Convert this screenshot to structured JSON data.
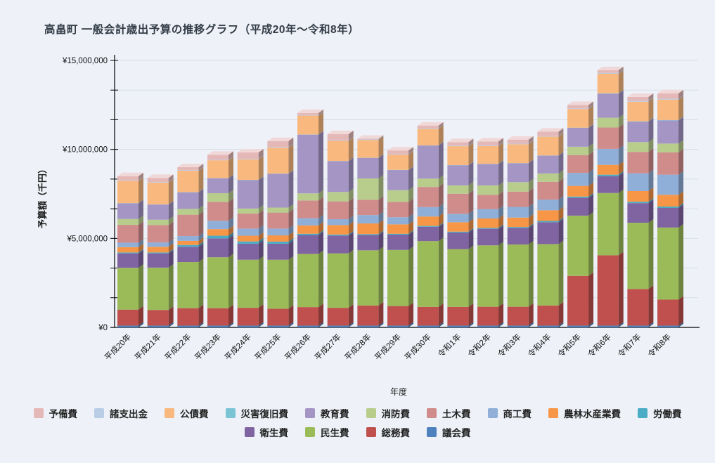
{
  "page": {
    "background": "#eef2f8"
  },
  "title": "高畠町 一般会計歳出予算の推移グラフ（平成20年～令和8年）",
  "y_axis": {
    "title": "予算額（千円）",
    "tick_labels": [
      "¥0",
      "¥5,000,000",
      "¥10,000,000",
      "¥15,000,000"
    ],
    "major_step": 5000000,
    "minor_divisions": 3
  },
  "x_axis": {
    "title": "年度"
  },
  "legend": {
    "rows": [
      [
        "予備費",
        "諸支出金",
        "公債費",
        "災害復旧費",
        "教育費",
        "消防費",
        "土木費",
        "商工費",
        "農林水産業費",
        "労働費"
      ],
      [
        "衛生費",
        "民生費",
        "総務費",
        "議会費"
      ]
    ]
  },
  "chart_data": {
    "type": "bar",
    "stacked": true,
    "effect": "3d",
    "unit": "千円",
    "title": "高畠町 一般会計歳出予算の推移グラフ（平成20年～令和8年）",
    "xlabel": "年度",
    "ylabel": "予算額（千円）",
    "ylim": [
      0,
      15000000
    ],
    "grid": true,
    "legend_position": "bottom",
    "categories": [
      "平成20年",
      "平成21年",
      "平成22年",
      "平成23年",
      "平成24年",
      "平成25年",
      "平成26年",
      "平成27年",
      "平成28年",
      "平成29年",
      "平成30年",
      "令和1年",
      "令和2年",
      "令和3年",
      "令和4年",
      "令和5年",
      "令和6年",
      "令和7年",
      "令和8年"
    ],
    "series": [
      {
        "name": "議会費",
        "color": "#4F81BD",
        "values": [
          100000,
          100000,
          100000,
          100000,
          100000,
          100000,
          100000,
          100000,
          100000,
          100000,
          100000,
          100000,
          100000,
          100000,
          100000,
          100000,
          100000,
          100000,
          100000
        ]
      },
      {
        "name": "総務費",
        "color": "#C0504D",
        "values": [
          900000,
          880000,
          980000,
          980000,
          1000000,
          950000,
          1040000,
          1000000,
          1130000,
          1100000,
          1050000,
          1050000,
          1060000,
          1060000,
          1130000,
          2790000,
          3950000,
          2060000,
          1460000
        ]
      },
      {
        "name": "民生費",
        "color": "#9BBB59",
        "values": [
          2350000,
          2380000,
          2590000,
          2860000,
          2700000,
          2750000,
          2990000,
          3060000,
          3100000,
          3150000,
          3700000,
          3250000,
          3450000,
          3500000,
          3450000,
          3390000,
          3500000,
          3720000,
          4050000
        ]
      },
      {
        "name": "衛生費",
        "color": "#8064A2",
        "values": [
          810000,
          800000,
          860000,
          1060000,
          900000,
          900000,
          1060000,
          1000000,
          860000,
          860000,
          800000,
          930000,
          930000,
          930000,
          1230000,
          1000000,
          950000,
          1100000,
          1100000
        ]
      },
      {
        "name": "労働費",
        "color": "#4BACC6",
        "values": [
          50000,
          50000,
          100000,
          150000,
          130000,
          120000,
          70000,
          60000,
          50000,
          50000,
          50000,
          50000,
          50000,
          50000,
          70000,
          70000,
          80000,
          80000,
          80000
        ]
      },
      {
        "name": "農林水産業費",
        "color": "#F79646",
        "values": [
          300000,
          320000,
          230000,
          370000,
          320000,
          350000,
          470000,
          530000,
          600000,
          530000,
          530000,
          530000,
          530000,
          530000,
          600000,
          600000,
          550000,
          600000,
          660000
        ]
      },
      {
        "name": "商工費",
        "color": "#8FAFD8",
        "values": [
          250000,
          240000,
          270000,
          470000,
          400000,
          380000,
          400000,
          330000,
          470000,
          400000,
          530000,
          470000,
          530000,
          600000,
          600000,
          730000,
          900000,
          1000000,
          1130000
        ]
      },
      {
        "name": "土木費",
        "color": "#D08B8B",
        "values": [
          1000000,
          980000,
          1200000,
          1060000,
          850000,
          900000,
          1000000,
          1000000,
          860000,
          860000,
          1130000,
          1130000,
          800000,
          860000,
          1000000,
          1000000,
          1200000,
          1200000,
          1250000
        ]
      },
      {
        "name": "消防費",
        "color": "#B8CC8C",
        "values": [
          330000,
          300000,
          330000,
          490000,
          280000,
          280000,
          400000,
          530000,
          1200000,
          660000,
          470000,
          470000,
          530000,
          530000,
          470000,
          470000,
          550000,
          550000,
          500000
        ]
      },
      {
        "name": "教育費",
        "color": "#A495C4",
        "values": [
          880000,
          850000,
          930000,
          840000,
          1600000,
          1900000,
          3300000,
          1730000,
          1150000,
          1130000,
          1860000,
          1130000,
          1200000,
          1060000,
          1000000,
          1060000,
          1350000,
          1150000,
          1300000
        ]
      },
      {
        "name": "災害復旧費",
        "color": "#7BC4D6",
        "values": [
          10000,
          10000,
          10000,
          10000,
          10000,
          10000,
          10000,
          10000,
          10000,
          10000,
          10000,
          10000,
          10000,
          10000,
          10000,
          10000,
          20000,
          20000,
          20000
        ]
      },
      {
        "name": "公債費",
        "color": "#F9B87E",
        "values": [
          1250000,
          1230000,
          1200000,
          1000000,
          1150000,
          1450000,
          1060000,
          1130000,
          1000000,
          860000,
          930000,
          1060000,
          1000000,
          1060000,
          1060000,
          1050000,
          1100000,
          1100000,
          1150000
        ]
      },
      {
        "name": "諸支出金",
        "color": "#B9CDE5",
        "values": [
          30000,
          30000,
          30000,
          30000,
          30000,
          30000,
          30000,
          30000,
          30000,
          30000,
          30000,
          30000,
          30000,
          30000,
          30000,
          30000,
          50000,
          50000,
          50000
        ]
      },
      {
        "name": "予備費",
        "color": "#E5B8B8",
        "values": [
          240000,
          230000,
          170000,
          280000,
          360000,
          350000,
          120000,
          350000,
          40000,
          200000,
          150000,
          200000,
          230000,
          230000,
          250000,
          200000,
          150000,
          220000,
          300000
        ]
      }
    ]
  }
}
